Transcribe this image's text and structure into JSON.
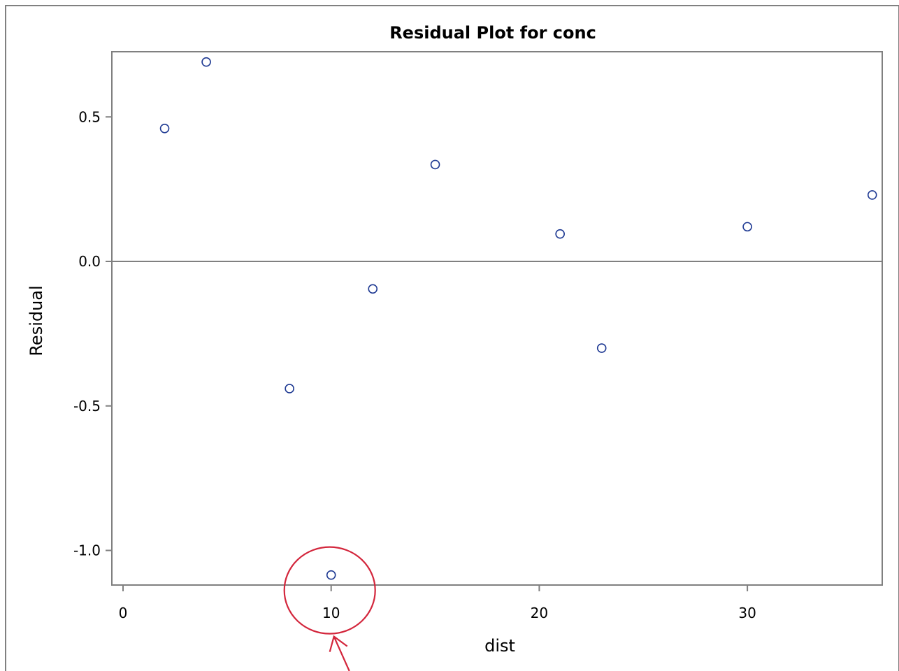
{
  "chart_data": {
    "type": "scatter",
    "title": "Residual Plot for conc",
    "xlabel": "dist",
    "ylabel": "Residual",
    "xlim": [
      -0.6,
      36.4
    ],
    "ylim": [
      -1.115,
      0.715
    ],
    "xticks": [
      0,
      10,
      20,
      30
    ],
    "xtick_labels": [
      "0",
      "10",
      "20",
      "30"
    ],
    "yticks": [
      0.5,
      0.0,
      -0.5,
      -1.0
    ],
    "ytick_labels": [
      "0.5",
      "0.0",
      "-0.5",
      "-1.0"
    ],
    "reference_line_y": 0,
    "grid": false,
    "legend": "none",
    "marker": "open-circle",
    "points": [
      {
        "x": 2,
        "y": 0.46
      },
      {
        "x": 4,
        "y": 0.69
      },
      {
        "x": 8,
        "y": -0.44
      },
      {
        "x": 10,
        "y": -1.085
      },
      {
        "x": 12,
        "y": -0.095
      },
      {
        "x": 15,
        "y": 0.335
      },
      {
        "x": 21,
        "y": 0.095
      },
      {
        "x": 23,
        "y": -0.3
      },
      {
        "x": 30,
        "y": 0.12
      },
      {
        "x": 36,
        "y": 0.23
      }
    ],
    "annotations": [
      {
        "type": "circle-highlight",
        "target_x": 10,
        "target_y": -1.085,
        "with_arrow": true
      }
    ],
    "colors": {
      "marker": "#1f3a93",
      "axis": "#808080",
      "reference_line": "#808080",
      "frame": "#808080",
      "annotation": "#d3263c"
    }
  }
}
